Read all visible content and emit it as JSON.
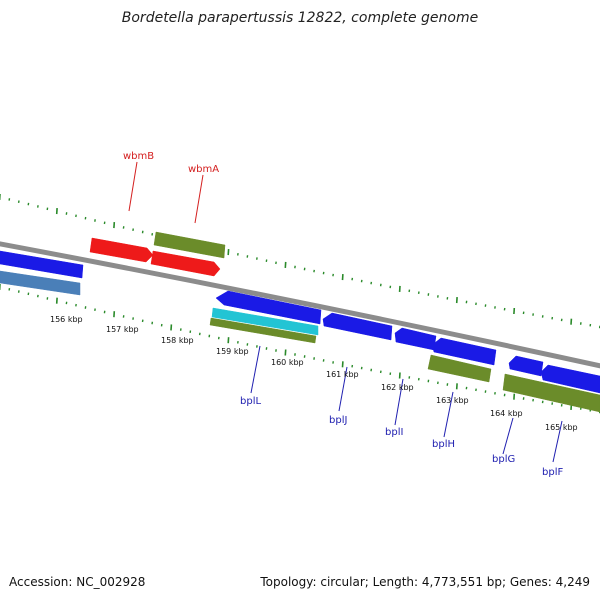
{
  "title": "Bordetella parapertussis 12822, complete genome",
  "footer": {
    "accession": "Accession: NC_002928",
    "summary": "Topology: circular; Length: 4,773,551 bp; Genes: 4,249"
  },
  "colors": {
    "backbone": "#8c8c8c",
    "tick": "#2a8a2a",
    "blue": "#1a1ae6",
    "red": "#ee1a1a",
    "olive": "#6b8c2a",
    "cyan": "#22c4d4",
    "steel": "#4a7fb8",
    "red_label": "#d42020",
    "blue_label": "#2020b0"
  },
  "scale": {
    "labels": [
      "156 kbp",
      "157 kbp",
      "158 kbp",
      "159 kbp",
      "160 kbp",
      "161 kbp",
      "162 kbp",
      "163 kbp",
      "164 kbp",
      "165 kbp"
    ]
  },
  "gene_labels": {
    "wbmB": "wbmB",
    "wbmA": "wbmA",
    "bplL": "bplL",
    "bplJ": "bplJ",
    "bplI": "bplI",
    "bplH": "bplH",
    "bplG": "bplG",
    "bplF": "bplF"
  }
}
